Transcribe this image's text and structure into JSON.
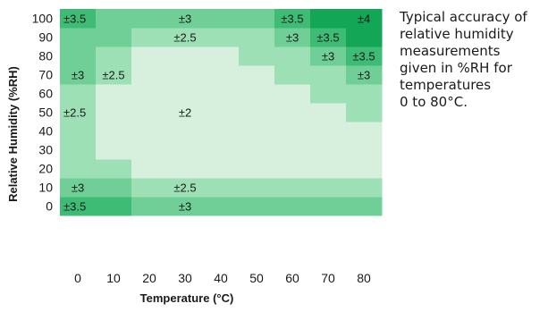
{
  "caption": {
    "lines": [
      "Typical accuracy of",
      "relative humidity",
      "measurements",
      "given in %RH for",
      "temperatures",
      "0 to 80°C."
    ]
  },
  "colors": {
    "level_2": "#d6f0dd",
    "level_2_5": "#9ee0b6",
    "level_3": "#6fcf97",
    "level_3_5": "#3ebc75",
    "level_4": "#12a656"
  },
  "chart_data": {
    "type": "heatmap",
    "xlabel": "Temperature (°C)",
    "ylabel": "Relative Humidity (%RH)",
    "x_ticks": [
      "0",
      "10",
      "20",
      "30",
      "40",
      "50",
      "60",
      "70",
      "80"
    ],
    "y_ticks": [
      "0",
      "10",
      "20",
      "30",
      "40",
      "50",
      "60",
      "70",
      "80",
      "90",
      "100"
    ],
    "x_values": [
      0,
      10,
      20,
      30,
      40,
      50,
      60,
      70,
      80
    ],
    "y_values": [
      0,
      10,
      20,
      30,
      40,
      50,
      60,
      70,
      80,
      90,
      100
    ],
    "z": [
      [
        3.5,
        3.5,
        3,
        3,
        3,
        3,
        3,
        3,
        3
      ],
      [
        3,
        3,
        2.5,
        2.5,
        2.5,
        2.5,
        2.5,
        2.5,
        2.5
      ],
      [
        2.5,
        2.5,
        2,
        2,
        2,
        2,
        2,
        2,
        2
      ],
      [
        2.5,
        2,
        2,
        2,
        2,
        2,
        2,
        2,
        2
      ],
      [
        2.5,
        2,
        2,
        2,
        2,
        2,
        2,
        2,
        2
      ],
      [
        2.5,
        2,
        2,
        2,
        2,
        2,
        2,
        2,
        2.5
      ],
      [
        2.5,
        2,
        2,
        2,
        2,
        2,
        2,
        2.5,
        2.5
      ],
      [
        3,
        2.5,
        2,
        2,
        2,
        2,
        2.5,
        2.5,
        3
      ],
      [
        3,
        2.5,
        2,
        2,
        2,
        2.5,
        2.5,
        3,
        3.5
      ],
      [
        3,
        3,
        2.5,
        2.5,
        2.5,
        2.5,
        3,
        3.5,
        4
      ],
      [
        3.5,
        3,
        3,
        3,
        3,
        3,
        3.5,
        4,
        4
      ]
    ],
    "annotations": [
      {
        "x": 0,
        "y": 100,
        "text": "±3.5",
        "anchor": "start"
      },
      {
        "x": 30,
        "y": 100,
        "text": "±3",
        "anchor": "middle"
      },
      {
        "x": 60,
        "y": 100,
        "text": "±3.5",
        "anchor": "middle"
      },
      {
        "x": 80,
        "y": 100,
        "text": "±4",
        "anchor": "middle"
      },
      {
        "x": 30,
        "y": 90,
        "text": "±2.5",
        "anchor": "middle"
      },
      {
        "x": 60,
        "y": 90,
        "text": "±3",
        "anchor": "middle"
      },
      {
        "x": 70,
        "y": 90,
        "text": "±3.5",
        "anchor": "middle"
      },
      {
        "x": 70,
        "y": 80,
        "text": "±3",
        "anchor": "middle"
      },
      {
        "x": 80,
        "y": 80,
        "text": "±3.5",
        "anchor": "middle"
      },
      {
        "x": 0,
        "y": 70,
        "text": "±3",
        "anchor": "middle"
      },
      {
        "x": 10,
        "y": 70,
        "text": "±2.5",
        "anchor": "middle"
      },
      {
        "x": 80,
        "y": 70,
        "text": "±3",
        "anchor": "middle"
      },
      {
        "x": 0,
        "y": 50,
        "text": "±2.5",
        "anchor": "start"
      },
      {
        "x": 30,
        "y": 50,
        "text": "±2",
        "anchor": "middle"
      },
      {
        "x": 0,
        "y": 10,
        "text": "±3",
        "anchor": "middle"
      },
      {
        "x": 30,
        "y": 10,
        "text": "±2.5",
        "anchor": "middle"
      },
      {
        "x": 0,
        "y": 0,
        "text": "±3.5",
        "anchor": "start"
      },
      {
        "x": 30,
        "y": 0,
        "text": "±3",
        "anchor": "middle"
      }
    ]
  }
}
